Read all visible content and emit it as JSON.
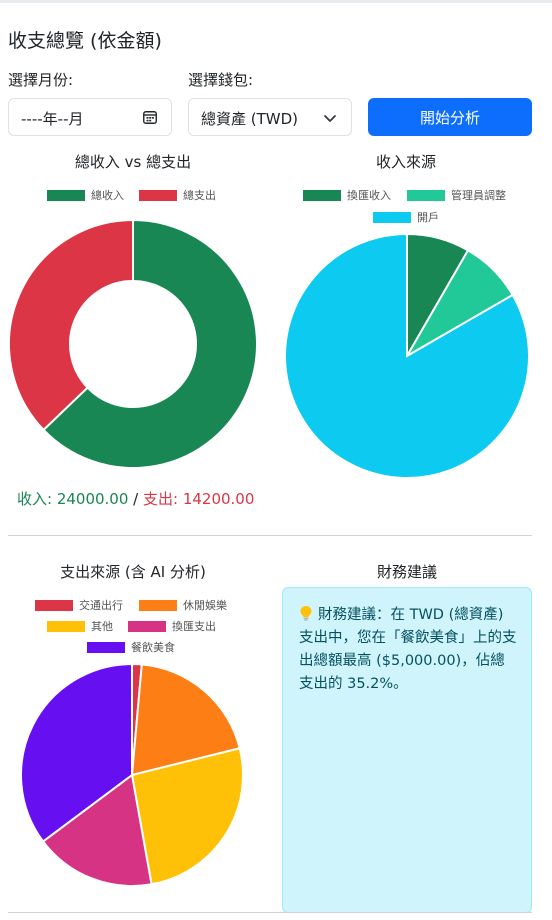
{
  "header": {
    "title": "收支總覽 (依金額)"
  },
  "filters": {
    "month_label": "選擇月份:",
    "month_value": "----年--月",
    "wallet_label": "選擇錢包:",
    "wallet_value": "總資產 (TWD)",
    "analyze_button": "開始分析"
  },
  "income_vs_expense": {
    "title": "總收入 vs 總支出",
    "legend": [
      "總收入",
      "總支出"
    ],
    "summary": {
      "income_text": "收入: 24000.00",
      "separator": " / ",
      "expense_text": "支出: 14200.00"
    }
  },
  "income_source": {
    "title": "收入來源",
    "legend": [
      "換匯收入",
      "管理員調整",
      "開戶"
    ]
  },
  "expense_source": {
    "title": "支出來源 (含 AI 分析)",
    "legend": [
      "交通出行",
      "休閒娛樂",
      "其他",
      "換匯支出",
      "餐飲美食"
    ]
  },
  "advice": {
    "title": "財務建議",
    "icon": "lightbulb-icon",
    "text": "財務建議：在 TWD (總資產) 支出中，您在「餐飲美食」上的支出總額最高 ($5,000.00)，佔總支出的 35.2%。"
  },
  "colors": {
    "green": "#198754",
    "red": "#dc3545",
    "teal": "#20c997",
    "cyan": "#0dcaf0",
    "orange": "#fd7e14",
    "yellow": "#ffc107",
    "pink": "#d63384",
    "purple": "#6610f2",
    "primary": "#0d6efd"
  },
  "chart_data": [
    {
      "type": "pie",
      "variant": "doughnut",
      "title": "總收入 vs 總支出",
      "categories": [
        "總收入",
        "總支出"
      ],
      "values": [
        24000,
        14200
      ],
      "colors": [
        "#198754",
        "#dc3545"
      ],
      "legend": "top"
    },
    {
      "type": "pie",
      "title": "收入來源",
      "categories": [
        "換匯收入",
        "管理員調整",
        "開戶"
      ],
      "values": [
        2000,
        2000,
        20000
      ],
      "colors": [
        "#198754",
        "#20c997",
        "#0dcaf0"
      ],
      "legend": "top"
    },
    {
      "type": "pie",
      "title": "支出來源 (含 AI 分析)",
      "categories": [
        "交通出行",
        "休閒娛樂",
        "其他",
        "換匯支出",
        "餐飲美食"
      ],
      "values": [
        200,
        2800,
        3700,
        2500,
        5000
      ],
      "colors": [
        "#dc3545",
        "#fd7e14",
        "#ffc107",
        "#d63384",
        "#6610f2"
      ],
      "legend": "top"
    }
  ]
}
